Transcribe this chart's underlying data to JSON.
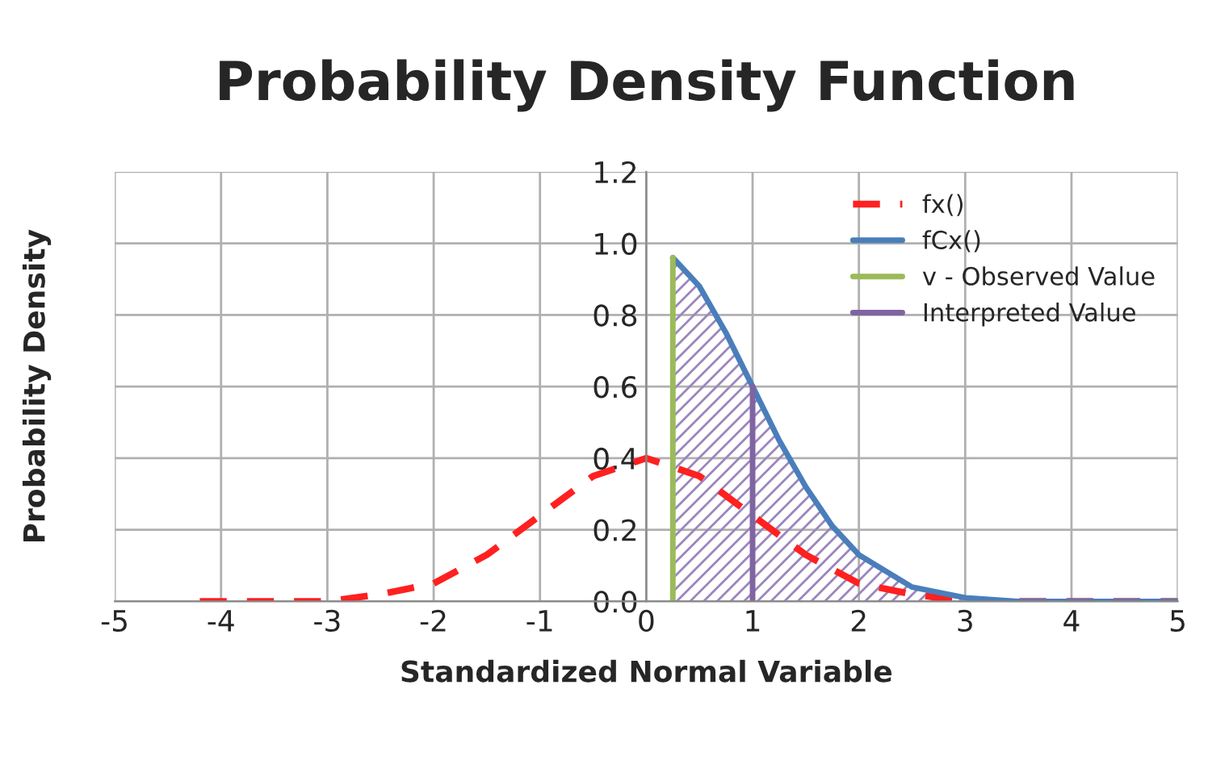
{
  "chart_data": {
    "type": "line",
    "title": "Probability Density Function",
    "xlabel": "Standardized Normal Variable",
    "ylabel": "Probability Density",
    "xlim": [
      -5,
      5
    ],
    "xticks": [
      -5,
      -4,
      -3,
      -2,
      -1,
      0,
      1,
      2,
      3,
      4,
      5
    ],
    "ylim": [
      0,
      1.2
    ],
    "yticks": [
      {
        "value": 0,
        "label": "0.0"
      },
      0.2,
      0.4,
      0.6,
      0.8,
      {
        "value": 1,
        "label": "1.0"
      },
      1.2
    ],
    "grid": true,
    "legend": "top right",
    "series": [
      {
        "name": "fx()",
        "line_style": "dashed",
        "color": "#ff2020",
        "x": [
          -4.2,
          -4,
          -3.5,
          -3,
          -2.5,
          -2,
          -1.5,
          -1,
          -0.5,
          0,
          0.5,
          1,
          1.5,
          2,
          2.5,
          3,
          3.5,
          4,
          4.5,
          5
        ],
        "values": [
          0,
          0,
          0,
          0,
          0.02,
          0.05,
          0.13,
          0.24,
          0.35,
          0.4,
          0.35,
          0.24,
          0.13,
          0.05,
          0.02,
          0,
          0,
          0,
          0,
          0
        ]
      },
      {
        "name": "fCx()",
        "type": "area",
        "line_style": "solid",
        "color": "#4a7ebb",
        "x": [
          0.25,
          0.5,
          0.75,
          1,
          1.25,
          1.5,
          1.75,
          2,
          2.5,
          3,
          3.5,
          4,
          5
        ],
        "values": [
          0.96,
          0.88,
          0.75,
          0.6,
          0.45,
          0.32,
          0.21,
          0.13,
          0.04,
          0.01,
          0,
          0,
          0
        ]
      },
      {
        "name": "v - Observed Value",
        "line_style": "solid",
        "color": "#9bbb59",
        "x": [
          0.25,
          0.25
        ],
        "values": [
          0,
          0.96
        ]
      },
      {
        "name": "Interpreted Value",
        "line_style": "solid",
        "color": "#8064a2",
        "x": [
          1,
          1
        ],
        "values": [
          0,
          0.6
        ]
      }
    ]
  }
}
